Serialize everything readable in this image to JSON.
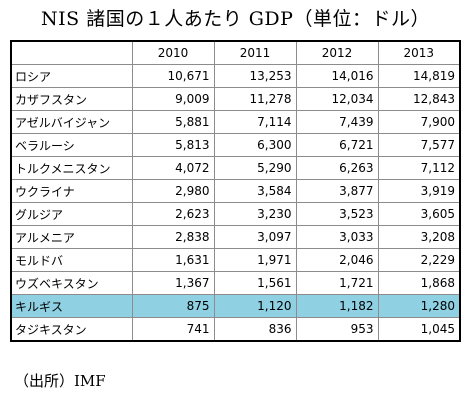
{
  "title": "NIS 諸国の１人あたり GDP（単位：ドル）",
  "table": {
    "columns": [
      "",
      "2010",
      "2011",
      "2012",
      "2013"
    ],
    "rows": [
      {
        "name": "ロシア",
        "values": [
          "10,671",
          "13,253",
          "14,016",
          "14,819"
        ]
      },
      {
        "name": "カザフスタン",
        "values": [
          "9,009",
          "11,278",
          "12,034",
          "12,843"
        ]
      },
      {
        "name": "アゼルバイジャン",
        "values": [
          "5,881",
          "7,114",
          "7,439",
          "7,900"
        ]
      },
      {
        "name": "ベラルーシ",
        "values": [
          "5,813",
          "6,300",
          "6,721",
          "7,577"
        ]
      },
      {
        "name": "トルクメニスタン",
        "values": [
          "4,072",
          "5,290",
          "6,263",
          "7,112"
        ]
      },
      {
        "name": "ウクライナ",
        "values": [
          "2,980",
          "3,584",
          "3,877",
          "3,919"
        ]
      },
      {
        "name": "グルジア",
        "values": [
          "2,623",
          "3,230",
          "3,523",
          "3,605"
        ]
      },
      {
        "name": "アルメニア",
        "values": [
          "2,838",
          "3,097",
          "3,033",
          "3,208"
        ]
      },
      {
        "name": "モルドバ",
        "values": [
          "1,631",
          "1,971",
          "2,046",
          "2,229"
        ]
      },
      {
        "name": "ウズベキスタン",
        "values": [
          "1,367",
          "1,561",
          "1,721",
          "1,868"
        ]
      },
      {
        "name": "キルギス",
        "values": [
          "875",
          "1,120",
          "1,182",
          "1,280"
        ],
        "highlighted": true
      },
      {
        "name": "タジキスタン",
        "values": [
          "741",
          "836",
          "953",
          "1,045"
        ]
      }
    ]
  },
  "source": "（出所）IMF",
  "colors": {
    "highlight_row": "#8fd0e3"
  }
}
